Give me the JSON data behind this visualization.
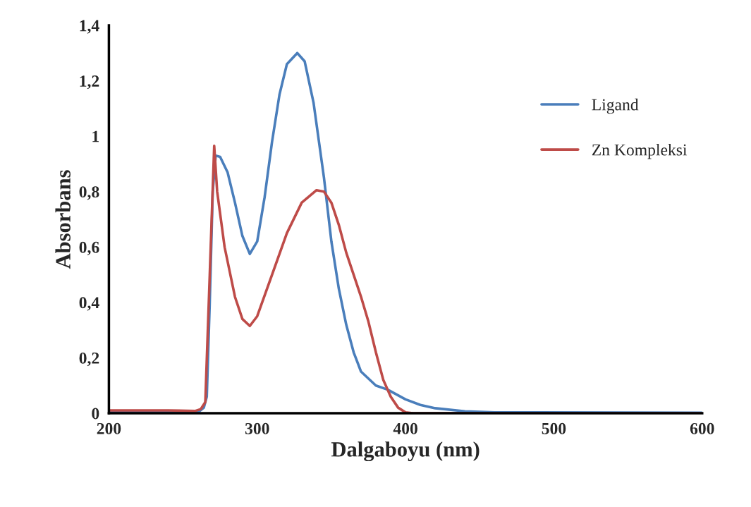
{
  "chart_data": {
    "type": "line",
    "xlabel": "Dalgaboyu (nm)",
    "ylabel": "Absorbans",
    "xlim": [
      200,
      600
    ],
    "xticks": [
      200,
      300,
      400,
      500,
      600
    ],
    "ylim": [
      0,
      1.4
    ],
    "yticks": [
      {
        "value": 0,
        "label": "0"
      },
      {
        "value": 0.2,
        "label": "0,2"
      },
      {
        "value": 0.4,
        "label": "0,4"
      },
      {
        "value": 0.6,
        "label": "0,6"
      },
      {
        "value": 0.8,
        "label": "0,8"
      },
      {
        "value": 1,
        "label": "1"
      },
      {
        "value": 1.2,
        "label": "1,2"
      },
      {
        "value": 1.4,
        "label": "1,4"
      }
    ],
    "grid": false,
    "legend": "right",
    "marker": "none",
    "line_style": "solid",
    "series": [
      {
        "name": "Ligand",
        "color": "#4a7ebb",
        "x": [
          200,
          260,
          264,
          266,
          268,
          270,
          272,
          275,
          280,
          285,
          290,
          295,
          300,
          305,
          310,
          315,
          320,
          327,
          332,
          338,
          345,
          350,
          355,
          360,
          365,
          370,
          380,
          388,
          400,
          410,
          420,
          440,
          460,
          600
        ],
        "values": [
          0.003,
          0.003,
          0.02,
          0.06,
          0.4,
          0.8,
          0.93,
          0.925,
          0.87,
          0.76,
          0.64,
          0.575,
          0.62,
          0.78,
          0.98,
          1.15,
          1.26,
          1.3,
          1.27,
          1.12,
          0.85,
          0.62,
          0.45,
          0.32,
          0.22,
          0.15,
          0.1,
          0.085,
          0.05,
          0.03,
          0.018,
          0.007,
          0.003,
          0.002
        ]
      },
      {
        "name": "Zn Kompleksi",
        "color": "#be4b48",
        "x": [
          200,
          240,
          258,
          262,
          265,
          268,
          271,
          273,
          278,
          285,
          290,
          295,
          300,
          310,
          320,
          330,
          340,
          345,
          350,
          355,
          360,
          370,
          375,
          380,
          385,
          390,
          395,
          400,
          405,
          600
        ],
        "values": [
          0.01,
          0.01,
          0.008,
          0.015,
          0.04,
          0.5,
          0.965,
          0.8,
          0.6,
          0.42,
          0.34,
          0.315,
          0.35,
          0.5,
          0.65,
          0.76,
          0.805,
          0.8,
          0.76,
          0.68,
          0.58,
          0.42,
          0.33,
          0.22,
          0.12,
          0.06,
          0.02,
          0.003,
          0.0,
          0.0
        ]
      }
    ]
  }
}
